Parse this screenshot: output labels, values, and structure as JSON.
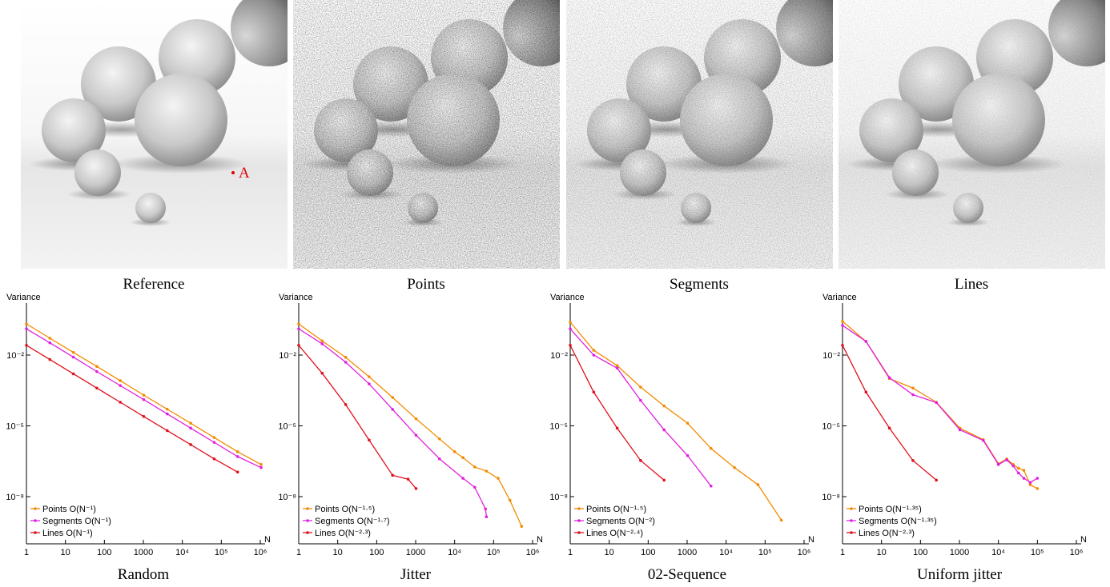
{
  "images": [
    {
      "caption": "Reference",
      "annotation": "A"
    },
    {
      "caption": "Points"
    },
    {
      "caption": "Segments"
    },
    {
      "caption": "Lines"
    }
  ],
  "chart_data": [
    {
      "type": "line",
      "caption": "Random",
      "y_label": "Variance",
      "x_label": "N",
      "xscale": "log",
      "yscale": "log",
      "legend": "lower left",
      "xlim": [
        1,
        1000000
      ],
      "ylim": [
        1e-10,
        1
      ],
      "xticks": [
        1,
        10,
        100,
        1000,
        {
          "value": 10000,
          "label": "10⁴"
        },
        {
          "value": 100000,
          "label": "10⁵"
        },
        {
          "value": 1000000,
          "label": "10⁶"
        }
      ],
      "yticks": [
        {
          "value": 0.01,
          "label": "10⁻²"
        },
        {
          "value": 1e-05,
          "label": "10⁻⁵"
        },
        {
          "value": 1e-08,
          "label": "10⁻⁸"
        }
      ],
      "series": [
        {
          "name": "Points O(N⁻¹)",
          "color": "#f28c00",
          "x": [
            1,
            4,
            16,
            64,
            256,
            1024,
            4096,
            16384,
            65536,
            262144,
            1048576
          ],
          "values": [
            0.21,
            0.052,
            0.013,
            0.0033,
            0.00082,
            0.0002,
            5.1e-05,
            1.3e-05,
            3.2e-06,
            8e-07,
            2.3e-07
          ]
        },
        {
          "name": "Segments O(N⁻¹)",
          "color": "#e020e0",
          "x": [
            1,
            4,
            16,
            64,
            256,
            1024,
            4096,
            16384,
            65536,
            262144,
            1048576
          ],
          "values": [
            0.13,
            0.033,
            0.0082,
            0.002,
            0.00051,
            0.00013,
            3.2e-05,
            8e-06,
            2e-06,
            5e-07,
            1.7e-07
          ]
        },
        {
          "name": "Lines O(N⁻¹)",
          "color": "#e0101c",
          "x": [
            1,
            4,
            16,
            64,
            256,
            1024,
            4096,
            16384,
            65536,
            262144
          ],
          "values": [
            0.026,
            0.0065,
            0.0016,
            0.0004,
            0.0001,
            2.5e-05,
            6.3e-06,
            1.6e-06,
            4e-07,
            1.1e-07
          ]
        }
      ]
    },
    {
      "type": "line",
      "caption": "Jitter",
      "y_label": "Variance",
      "x_label": "N",
      "xscale": "log",
      "yscale": "log",
      "legend": "lower left",
      "xlim": [
        1,
        1000000
      ],
      "ylim": [
        1e-10,
        1
      ],
      "xticks": [
        1,
        10,
        100,
        1000,
        {
          "value": 10000,
          "label": "10⁴"
        },
        {
          "value": 100000,
          "label": "10⁵"
        },
        {
          "value": 1000000,
          "label": "10⁶"
        }
      ],
      "yticks": [
        {
          "value": 0.01,
          "label": "10⁻²"
        },
        {
          "value": 1e-05,
          "label": "10⁻⁵"
        },
        {
          "value": 1e-08,
          "label": "10⁻⁸"
        }
      ],
      "series": [
        {
          "name": "Points O(N⁻¹·⁵)",
          "color": "#f28c00",
          "x": [
            1,
            4,
            16,
            64,
            256,
            1024,
            4096,
            10000,
            16384,
            32768,
            65536,
            131072,
            262144,
            524288
          ],
          "values": [
            0.21,
            0.04,
            0.008,
            0.0012,
            0.00016,
            2e-05,
            2.8e-06,
            8e-07,
            4.5e-07,
            1.8e-07,
            1.2e-07,
            6e-08,
            7e-09,
            5.5e-10
          ]
        },
        {
          "name": "Segments O(N⁻¹·⁷)",
          "color": "#e020e0",
          "x": [
            1,
            4,
            16,
            64,
            256,
            1024,
            4096,
            16384,
            32768,
            62000,
            65536
          ],
          "values": [
            0.13,
            0.03,
            0.005,
            0.0006,
            5e-05,
            4e-06,
            4e-07,
            6e-08,
            2.5e-08,
            3e-09,
            1.4e-09
          ]
        },
        {
          "name": "Lines O(N⁻²·³)",
          "color": "#e0101c",
          "x": [
            1,
            4,
            16,
            64,
            256,
            640,
            1024
          ],
          "values": [
            0.026,
            0.0017,
            8e-05,
            2.5e-06,
            8e-08,
            5.5e-08,
            2.2e-08
          ]
        }
      ]
    },
    {
      "type": "line",
      "caption": "02-Sequence",
      "y_label": "Variance",
      "x_label": "N",
      "xscale": "log",
      "yscale": "log",
      "legend": "lower left",
      "xlim": [
        1,
        1000000
      ],
      "ylim": [
        1e-10,
        1
      ],
      "xticks": [
        1,
        10,
        100,
        1000,
        {
          "value": 10000,
          "label": "10⁴"
        },
        {
          "value": 100000,
          "label": "10⁵"
        },
        {
          "value": 1000000,
          "label": "10⁶"
        }
      ],
      "yticks": [
        {
          "value": 0.01,
          "label": "10⁻²"
        },
        {
          "value": 1e-05,
          "label": "10⁻⁵"
        },
        {
          "value": 1e-08,
          "label": "10⁻⁸"
        }
      ],
      "series": [
        {
          "name": "Points O(N⁻¹·⁵)",
          "color": "#f28c00",
          "x": [
            1,
            4,
            16,
            64,
            256,
            1024,
            4096,
            16384,
            65536,
            262144
          ],
          "values": [
            0.25,
            0.016,
            0.0036,
            0.00044,
            7e-05,
            1.3e-05,
            1.1e-06,
            1.7e-07,
            3.2e-08,
            1e-09
          ]
        },
        {
          "name": "Segments O(N⁻²)",
          "color": "#e020e0",
          "x": [
            1,
            4,
            16,
            64,
            256,
            1024,
            4096
          ],
          "values": [
            0.13,
            0.01,
            0.0028,
            0.00012,
            6.8e-06,
            5.5e-07,
            2.8e-08
          ]
        },
        {
          "name": "Lines O(N⁻²·⁴)",
          "color": "#e0101c",
          "x": [
            1,
            4,
            16,
            64,
            256
          ],
          "values": [
            0.026,
            0.00027,
            8e-06,
            3.4e-07,
            5e-08
          ]
        }
      ]
    },
    {
      "type": "line",
      "caption": "Uniform jitter",
      "y_label": "Variance",
      "x_label": "N",
      "xscale": "log",
      "yscale": "log",
      "legend": "lower left",
      "xlim": [
        1,
        1000000
      ],
      "ylim": [
        1e-10,
        1
      ],
      "xticks": [
        1,
        10,
        100,
        1000,
        {
          "value": 10000,
          "label": "10⁴"
        },
        {
          "value": 100000,
          "label": "10⁵"
        },
        {
          "value": 1000000,
          "label": "10⁶"
        }
      ],
      "yticks": [
        {
          "value": 0.01,
          "label": "10⁻²"
        },
        {
          "value": 1e-05,
          "label": "10⁻⁵"
        },
        {
          "value": 1e-08,
          "label": "10⁻⁸"
        }
      ],
      "series": [
        {
          "name": "Points O(N⁻¹·³⁵)",
          "color": "#f28c00",
          "x": [
            1,
            4,
            16,
            64,
            256,
            1024,
            4096,
            10000,
            16384,
            24000,
            32768,
            45000,
            65536,
            100000
          ],
          "values": [
            0.27,
            0.038,
            0.001,
            0.0004,
            0.0001,
            8e-06,
            2.6e-06,
            2.5e-07,
            4e-07,
            2.3e-07,
            1.6e-07,
            1.3e-07,
            3.2e-08,
            2.2e-08
          ]
        },
        {
          "name": "Segments O(N⁻¹·³⁵)",
          "color": "#e020e0",
          "x": [
            1,
            4,
            16,
            64,
            256,
            1024,
            4096,
            10000,
            16384,
            24000,
            32768,
            45000,
            65536,
            100000
          ],
          "values": [
            0.18,
            0.038,
            0.0011,
            0.00021,
            9.7e-05,
            6.8e-06,
            2.4e-06,
            2.3e-07,
            3.6e-07,
            2e-07,
            1e-07,
            6e-08,
            4e-08,
            6e-08
          ]
        },
        {
          "name": "Lines O(N⁻²·³)",
          "color": "#e0101c",
          "x": [
            1,
            4,
            16,
            64,
            256
          ],
          "values": [
            0.026,
            0.00027,
            8e-06,
            3.4e-07,
            5e-08
          ]
        }
      ]
    }
  ]
}
